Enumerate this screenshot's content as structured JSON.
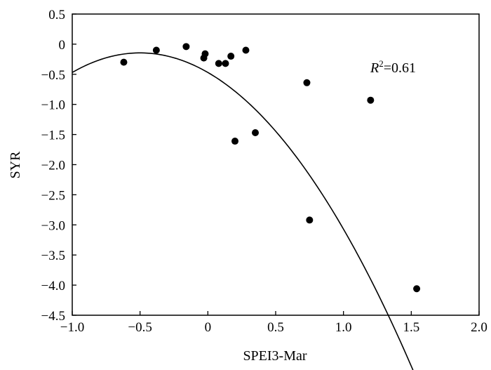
{
  "chart_data": {
    "type": "scatter",
    "xlabel": "SPEI3-Mar",
    "ylabel": "SYR",
    "xlim": [
      -1.0,
      2.0
    ],
    "ylim": [
      -4.5,
      0.5
    ],
    "x_ticks": [
      -1.0,
      -0.5,
      0,
      0.5,
      1.0,
      1.5,
      2.0
    ],
    "x_tick_labels": [
      "−1.0",
      "−0.5",
      "0",
      "0.5",
      "1.0",
      "1.5",
      "2.0"
    ],
    "y_ticks": [
      0.5,
      0,
      -0.5,
      -1.0,
      -1.5,
      -2.0,
      -2.5,
      -3.0,
      -3.5,
      -4.0,
      -4.5
    ],
    "y_tick_labels": [
      "0.5",
      "0",
      "−0.5",
      "−1.0",
      "−1.5",
      "−2.0",
      "−2.5",
      "−3.0",
      "−3.5",
      "−4.0",
      "−4.5"
    ],
    "grid": false,
    "legend": "none",
    "points": [
      {
        "x": -0.62,
        "y": -0.3
      },
      {
        "x": -0.38,
        "y": -0.1
      },
      {
        "x": -0.16,
        "y": -0.04
      },
      {
        "x": -0.03,
        "y": -0.23
      },
      {
        "x": -0.02,
        "y": -0.16
      },
      {
        "x": 0.08,
        "y": -0.32
      },
      {
        "x": 0.13,
        "y": -0.32
      },
      {
        "x": 0.17,
        "y": -0.2
      },
      {
        "x": 0.2,
        "y": -1.61
      },
      {
        "x": 0.28,
        "y": -0.1
      },
      {
        "x": 0.35,
        "y": -1.47
      },
      {
        "x": 0.73,
        "y": -0.64
      },
      {
        "x": 0.75,
        "y": -2.92
      },
      {
        "x": 1.2,
        "y": -0.93
      },
      {
        "x": 1.54,
        "y": -4.06
      }
    ],
    "fit": {
      "type": "quadratic",
      "x_range": [
        -1.0,
        1.55
      ],
      "coefficients": {
        "a": -1.3,
        "b": -1.3,
        "c": -0.47
      }
    },
    "annotation": {
      "r_symbol": "R",
      "r_sup": "2",
      "r_value": "=0.61"
    },
    "colors": {
      "points": "#000000",
      "fit_line": "#000000",
      "axes": "#000000"
    }
  }
}
